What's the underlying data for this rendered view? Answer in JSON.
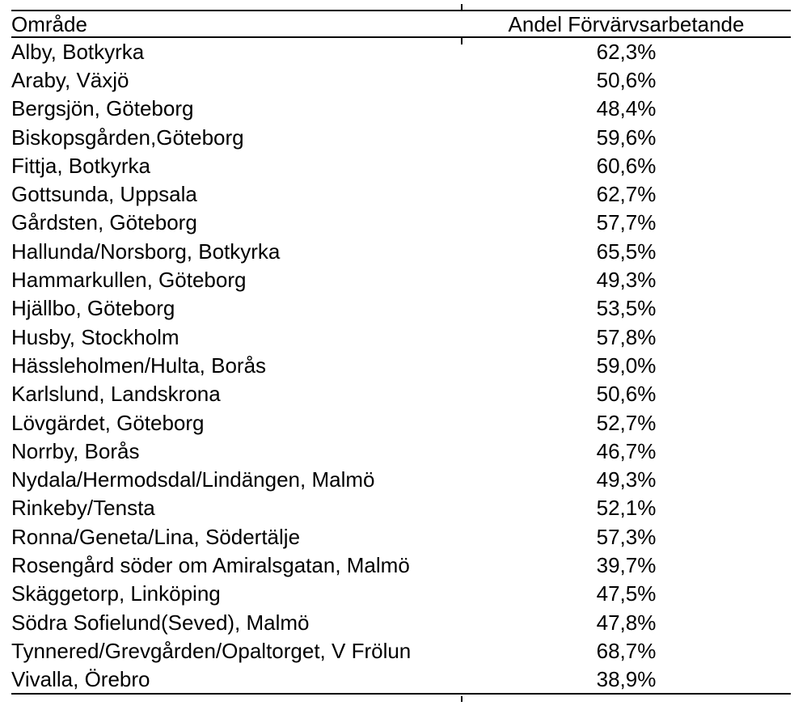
{
  "colors": {
    "text": "#000000",
    "border": "#000000",
    "background": "#ffffff"
  },
  "table": {
    "columns": [
      {
        "label": "Område"
      },
      {
        "label": "Andel Förvärvsarbetande"
      }
    ],
    "rows": [
      {
        "area": "Alby, Botkyrka",
        "value": "62,3%"
      },
      {
        "area": "Araby, Växjö",
        "value": "50,6%"
      },
      {
        "area": "Bergsjön, Göteborg",
        "value": "48,4%"
      },
      {
        "area": "Biskopsgården,Göteborg",
        "value": "59,6%"
      },
      {
        "area": "Fittja, Botkyrka",
        "value": "60,6%"
      },
      {
        "area": "Gottsunda, Uppsala",
        "value": "62,7%"
      },
      {
        "area": "Gårdsten, Göteborg",
        "value": "57,7%"
      },
      {
        "area": "Hallunda/Norsborg, Botkyrka",
        "value": "65,5%"
      },
      {
        "area": "Hammarkullen, Göteborg",
        "value": "49,3%"
      },
      {
        "area": "Hjällbo, Göteborg",
        "value": "53,5%"
      },
      {
        "area": "Husby, Stockholm",
        "value": "57,8%"
      },
      {
        "area": "Hässleholmen/Hulta, Borås",
        "value": "59,0%"
      },
      {
        "area": "Karlslund, Landskrona",
        "value": "50,6%"
      },
      {
        "area": "Lövgärdet, Göteborg",
        "value": "52,7%"
      },
      {
        "area": "Norrby, Borås",
        "value": "46,7%"
      },
      {
        "area": "Nydala/Hermodsdal/Lindängen, Malmö",
        "value": "49,3%"
      },
      {
        "area": "Rinkeby/Tensta",
        "value": "52,1%"
      },
      {
        "area": "Ronna/Geneta/Lina, Södertälje",
        "value": "57,3%"
      },
      {
        "area": "Rosengård söder om Amiralsgatan, Malmö",
        "value": "39,7%"
      },
      {
        "area": "Skäggetorp, Linköping",
        "value": "47,5%"
      },
      {
        "area": "Södra Sofielund(Seved), Malmö",
        "value": "47,8%"
      },
      {
        "area": "Tynnered/Grevgården/Opaltorget, V Frölun",
        "value": "68,7%"
      },
      {
        "area": "Vivalla, Örebro",
        "value": "38,9%"
      }
    ]
  }
}
